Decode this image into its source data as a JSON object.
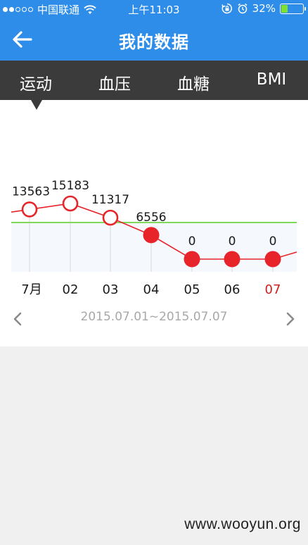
{
  "status_bar": {
    "carrier": "中国联通",
    "time": "上午11:03",
    "battery_percent": "32%",
    "battery_level": 0.32,
    "signal_dots": 5,
    "signal_filled": 2
  },
  "nav": {
    "title": "我的数据",
    "back_icon": "back-arrow-icon"
  },
  "tabs": [
    {
      "label": "运动",
      "active": true
    },
    {
      "label": "血压",
      "active": false
    },
    {
      "label": "血糖",
      "active": false
    },
    {
      "label": "BMI",
      "active": false
    }
  ],
  "chart_data": {
    "type": "line",
    "categories": [
      "7月",
      "02",
      "03",
      "04",
      "05",
      "06",
      "07"
    ],
    "values": [
      13563,
      15183,
      11317,
      6556,
      0,
      0,
      0
    ],
    "value_labels": [
      "13563",
      "15183",
      "11317",
      "6556",
      "0",
      "0",
      "0"
    ],
    "goal": 10000,
    "highlight_category": "07",
    "colors": {
      "line": "#e8242b",
      "goal": "#7ed957",
      "below_goal_fill": "#f5f8fd",
      "highlight_label": "#cc1f1f"
    }
  },
  "date_range": {
    "text": "2015.07.01~2015.07.07"
  },
  "watermark": "www.wooyun.org"
}
